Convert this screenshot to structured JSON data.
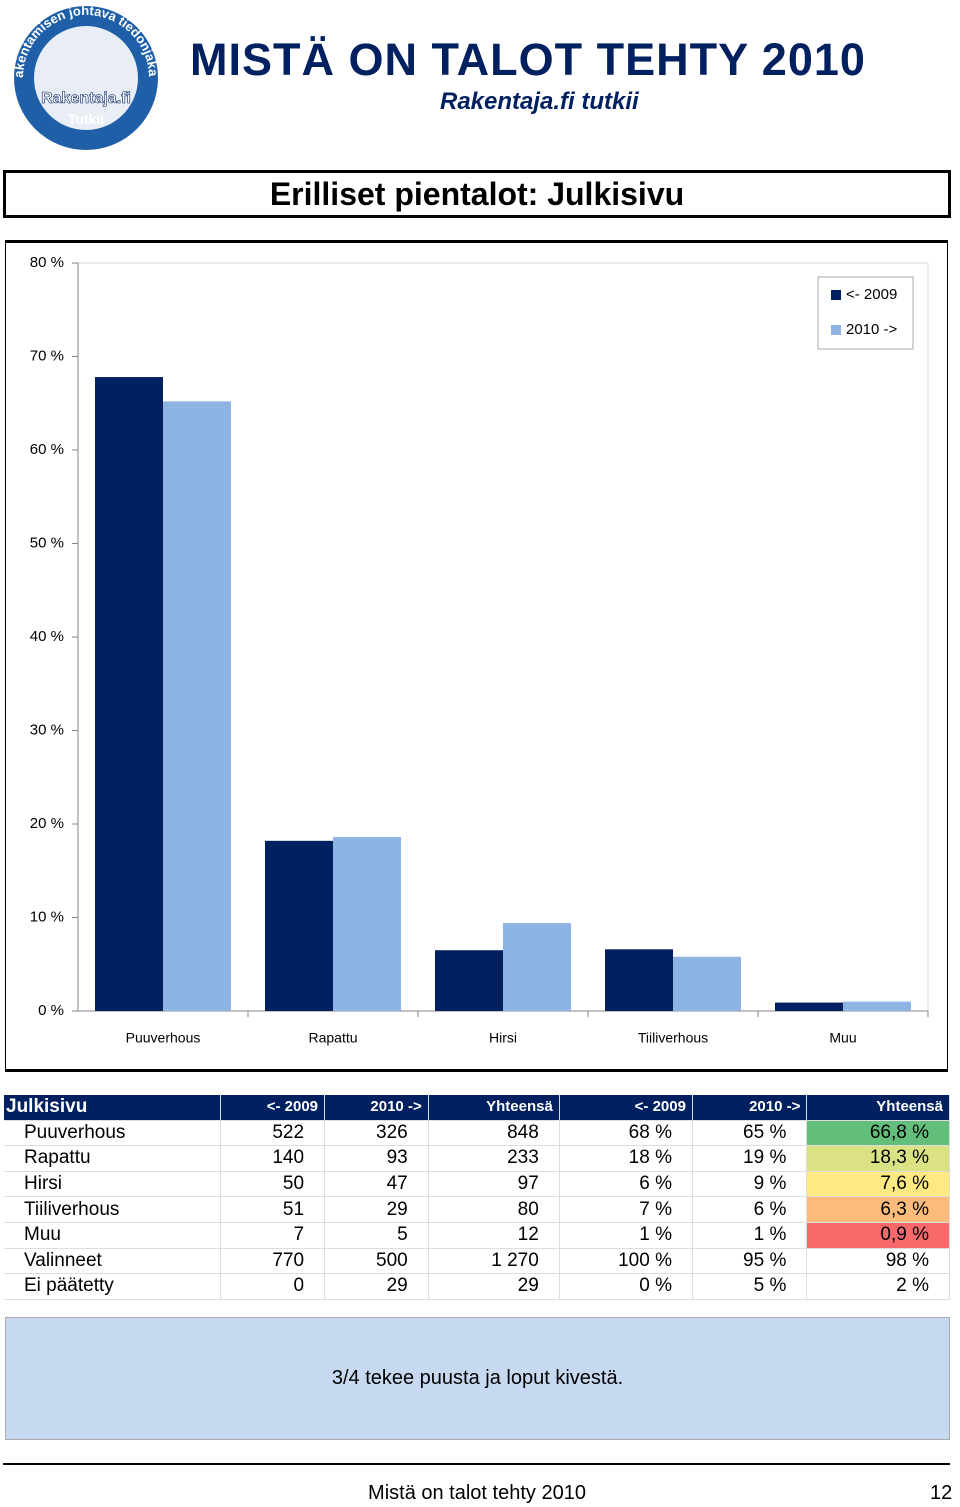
{
  "header": {
    "title": "MISTÄ ON TALOT TEHTY 2010",
    "subtitle": "Rakentaja.fi tutkii",
    "logo_ring": "Rakentamisen johtava tiedonjakaja",
    "logo_name": "Rakentaja.fi",
    "logo_tag": "Tutkii"
  },
  "section_title": "Erilliset pientalot: Julkisivu",
  "chart_data": {
    "type": "bar",
    "categories": [
      "Puuverhous",
      "Rapattu",
      "Hirsi",
      "Tiiliverhous",
      "Muu"
    ],
    "series": [
      {
        "name": "<- 2009",
        "color": "#002060",
        "values": [
          67.8,
          18.2,
          6.5,
          6.6,
          0.9
        ]
      },
      {
        "name": "2010 ->",
        "color": "#8eb4e3",
        "values": [
          65.2,
          18.6,
          9.4,
          5.8,
          1.0
        ]
      }
    ],
    "ylim": [
      0,
      80
    ],
    "yticks": [
      {
        "value": 0,
        "label": "0 %"
      },
      {
        "value": 10,
        "label": "10 %"
      },
      {
        "value": 20,
        "label": "20 %"
      },
      {
        "value": 30,
        "label": "30 %"
      },
      {
        "value": 40,
        "label": "40 %"
      },
      {
        "value": 50,
        "label": "50 %"
      },
      {
        "value": 60,
        "label": "60 %"
      },
      {
        "value": 70,
        "label": "70 %"
      },
      {
        "value": 80,
        "label": "80 %"
      }
    ],
    "grid": false,
    "legend": "top-right"
  },
  "table": {
    "header": [
      "Julkisivu",
      "<- 2009",
      "2010 ->",
      "Yhteensä",
      "<- 2009",
      "2010 ->",
      "Yhteensä"
    ],
    "rows": [
      [
        "Puuverhous",
        "522",
        "326",
        "848",
        "68 %",
        "65 %",
        "66,8 %"
      ],
      [
        "Rapattu",
        "140",
        "93",
        "233",
        "18 %",
        "19 %",
        "18,3 %"
      ],
      [
        "Hirsi",
        "50",
        "47",
        "97",
        "6 %",
        "9 %",
        "7,6 %"
      ],
      [
        "Tiiliverhous",
        "51",
        "29",
        "80",
        "7 %",
        "6 %",
        "6,3 %"
      ],
      [
        "Muu",
        "7",
        "5",
        "12",
        "1 %",
        "1 %",
        "0,9 %"
      ],
      [
        "Valinneet",
        "770",
        "500",
        "1 270",
        "100 %",
        "95 %",
        "98 %"
      ],
      [
        "Ei päätetty",
        "0",
        "29",
        "29",
        "0 %",
        "5 %",
        "2 %"
      ]
    ]
  },
  "note": "3/4 tekee puusta ja loput kivestä.",
  "footer": {
    "text": "Mistä on talot tehty 2010",
    "page": "12"
  }
}
